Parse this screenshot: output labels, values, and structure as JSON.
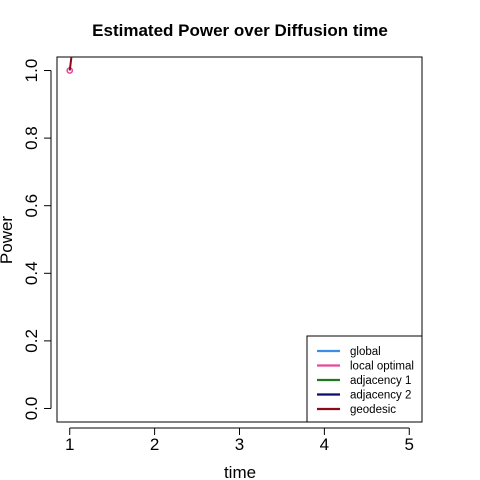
{
  "chart_data": {
    "type": "line",
    "title": "Estimated Power over Diffusion time",
    "xlabel": "time",
    "ylabel": "Power",
    "xlim": [
      0.85,
      5.15
    ],
    "ylim": [
      -0.04,
      1.04
    ],
    "x_ticks": [
      "1",
      "2",
      "3",
      "4",
      "5"
    ],
    "y_ticks": [
      "0.0",
      "0.2",
      "0.4",
      "0.6",
      "0.8",
      "1.0"
    ],
    "legend_position": "bottom-right",
    "series": [
      {
        "name": "global",
        "color": "#3b8ee8",
        "x": [
          1
        ],
        "y": [
          1.0
        ]
      },
      {
        "name": "local optimal",
        "color": "#e8489a",
        "x": [
          1
        ],
        "y": [
          1.0
        ],
        "marker": "circle"
      },
      {
        "name": "adjacency 1",
        "color": "#1f7a1f",
        "x": [
          1
        ],
        "y": [
          1.0
        ]
      },
      {
        "name": "adjacency 2",
        "color": "#0a0a6b",
        "x": [
          1
        ],
        "y": [
          1.0
        ]
      },
      {
        "name": "geodesic",
        "color": "#8b0a1a",
        "x": [
          1,
          1.02
        ],
        "y": [
          1.0,
          1.04
        ]
      }
    ]
  }
}
